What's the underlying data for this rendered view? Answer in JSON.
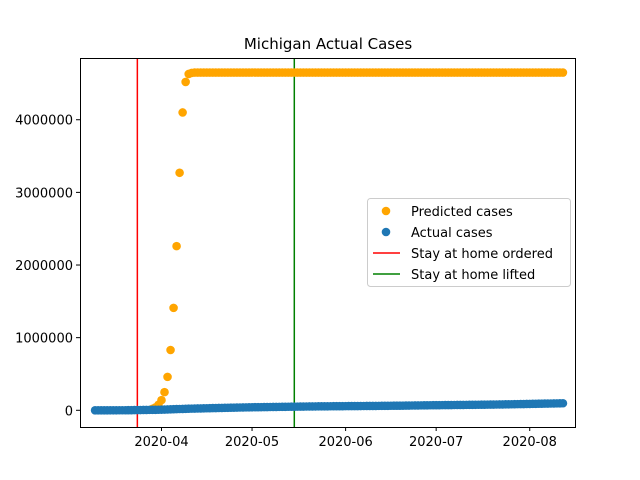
{
  "chart_data": {
    "type": "scatter",
    "title": "Michigan Actual Cases",
    "xlabel": "",
    "ylabel": "",
    "x_type": "date",
    "xlim": [
      "2020-03-05",
      "2020-08-16"
    ],
    "ylim": [
      -230000,
      4850000
    ],
    "x_ticks": [
      "2020-04",
      "2020-05",
      "2020-06",
      "2020-07",
      "2020-08"
    ],
    "x_tick_dates": [
      "2020-04-01",
      "2020-05-01",
      "2020-06-01",
      "2020-07-01",
      "2020-08-01"
    ],
    "y_ticks": [
      0,
      1000000,
      2000000,
      3000000,
      4000000
    ],
    "y_tick_labels": [
      "0",
      "1000000",
      "2000000",
      "3000000",
      "4000000"
    ],
    "grid": false,
    "legend_position": "center-right",
    "series": [
      {
        "name": "Predicted cases",
        "color": "#ffa500",
        "marker": "circle",
        "points": [
          [
            "2020-03-29",
            20000
          ],
          [
            "2020-03-30",
            40000
          ],
          [
            "2020-03-31",
            75000
          ],
          [
            "2020-04-01",
            140000
          ],
          [
            "2020-04-02",
            250000
          ],
          [
            "2020-04-03",
            460000
          ],
          [
            "2020-04-04",
            830000
          ],
          [
            "2020-04-05",
            1410000
          ],
          [
            "2020-04-06",
            2260000
          ],
          [
            "2020-04-07",
            3270000
          ],
          [
            "2020-04-08",
            4100000
          ],
          [
            "2020-04-09",
            4520000
          ],
          [
            "2020-04-10",
            4630000
          ],
          [
            "2020-04-11",
            4645000
          ],
          [
            "2020-04-12",
            4650000
          ],
          [
            "2020-04-13",
            4650000
          ],
          [
            "2020-08-12",
            4650000
          ]
        ]
      },
      {
        "name": "Actual cases",
        "color": "#1f77b4",
        "marker": "circle",
        "points": [
          [
            "2020-03-10",
            2
          ],
          [
            "2020-03-20",
            550
          ],
          [
            "2020-03-31",
            7600
          ],
          [
            "2020-04-10",
            22000
          ],
          [
            "2020-04-20",
            32000
          ],
          [
            "2020-04-30",
            41000
          ],
          [
            "2020-05-10",
            47000
          ],
          [
            "2020-05-20",
            53000
          ],
          [
            "2020-05-31",
            57000
          ],
          [
            "2020-06-10",
            60000
          ],
          [
            "2020-06-20",
            64000
          ],
          [
            "2020-06-30",
            70000
          ],
          [
            "2020-07-10",
            74000
          ],
          [
            "2020-07-20",
            79000
          ],
          [
            "2020-07-31",
            87000
          ],
          [
            "2020-08-12",
            97000
          ]
        ]
      }
    ],
    "vlines": [
      {
        "name": "Stay at home ordered",
        "date": "2020-03-24",
        "color": "#ff0000"
      },
      {
        "name": "Stay at home lifted",
        "date": "2020-05-15",
        "color": "#008000"
      }
    ]
  }
}
